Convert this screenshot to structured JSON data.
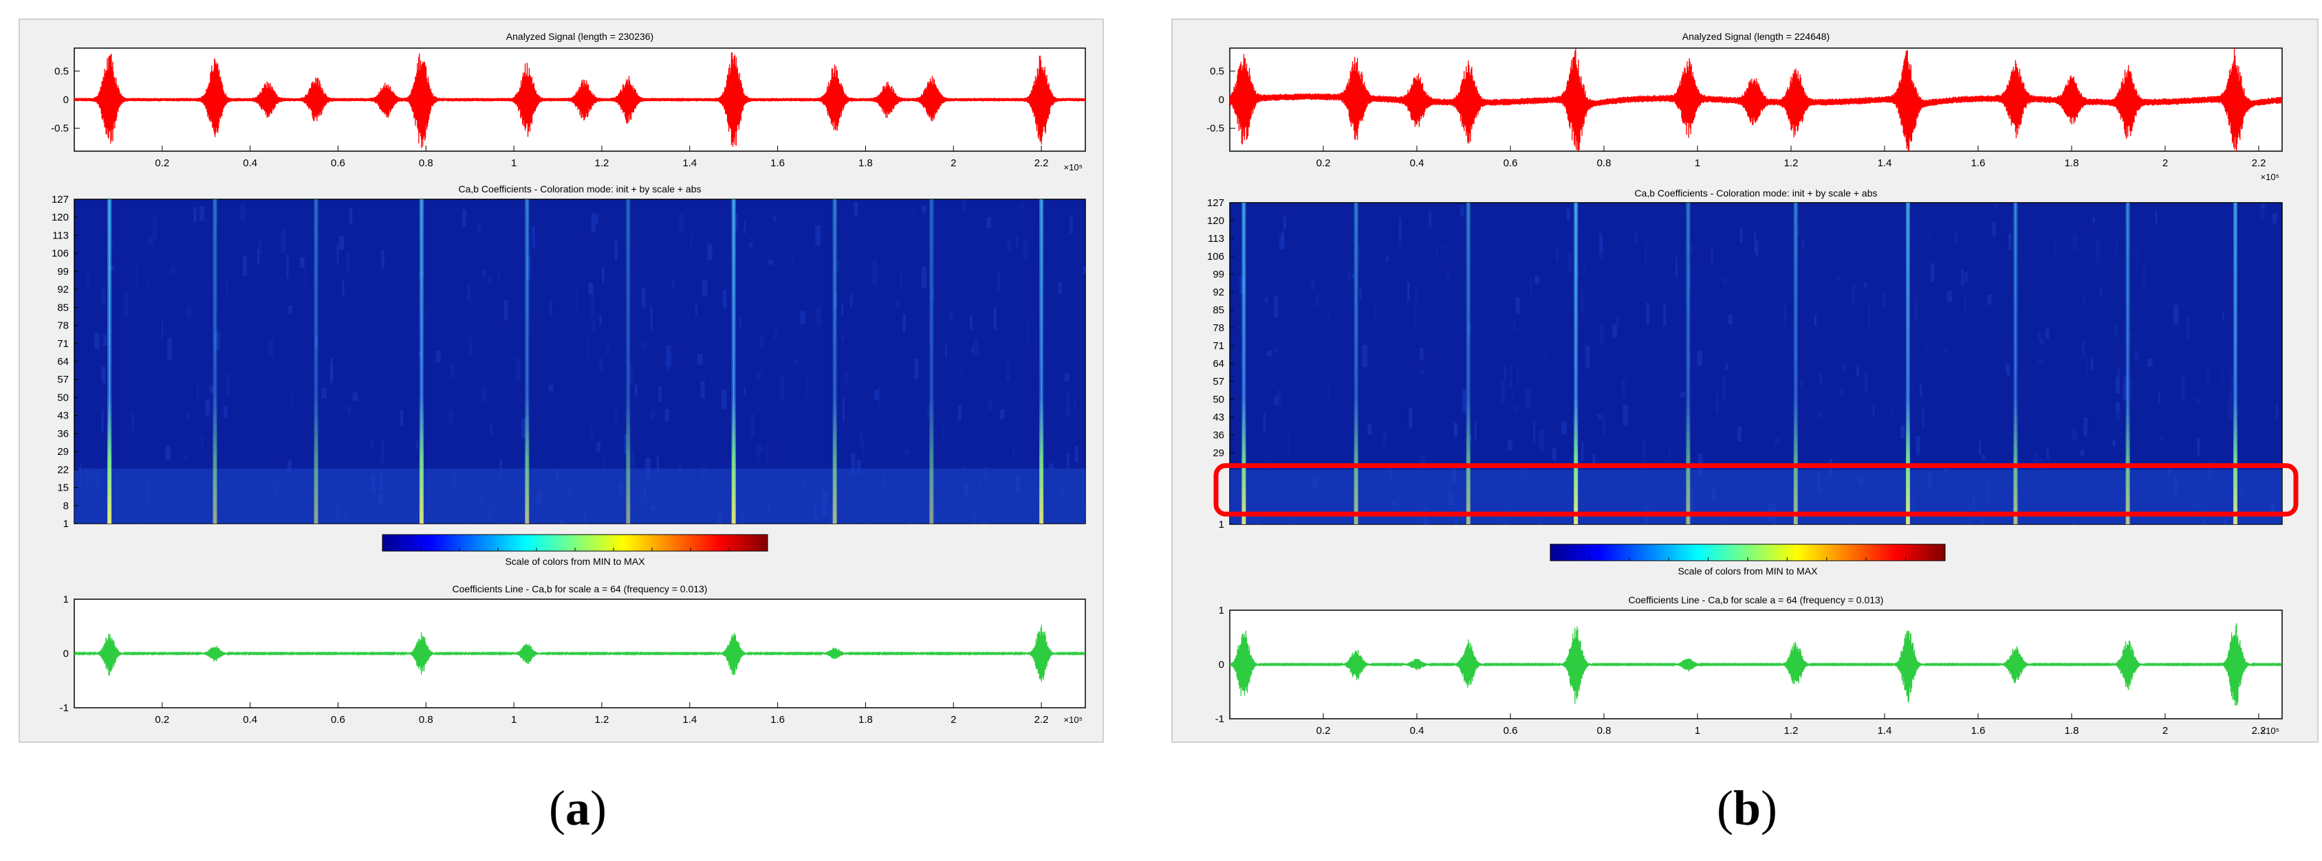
{
  "figure": {
    "panels": [
      {
        "label": "a",
        "signal_title": "Analyzed Signal (length = 230236)",
        "scalogram_title": "Ca,b Coefficients - Coloration mode: init + by scale + abs",
        "colorbar_label": "Scale of colors from MIN to MAX",
        "coeff_title": "Coefficients Line - Ca,b for scale a = 64  (frequency =   0.013)",
        "x_exponent": "×10⁵"
      },
      {
        "label": "b",
        "signal_title": "Analyzed Signal (length = 224648)",
        "scalogram_title": "Ca,b Coefficients - Coloration mode: init + by scale + abs",
        "colorbar_label": "Scale of colors from MIN to MAX",
        "coeff_title": "Coefficients Line - Ca,b for scale a = 64  (frequency =   0.013)",
        "x_exponent": "×10⁵"
      }
    ]
  },
  "chart_data": [
    {
      "panel": "a",
      "type": "line",
      "title": "Analyzed Signal (length = 230236)",
      "x_ticks": [
        "0.2",
        "0.4",
        "0.6",
        "0.8",
        "1",
        "1.2",
        "1.4",
        "1.6",
        "1.8",
        "2",
        "2.2"
      ],
      "y_ticks": [
        "0.5",
        "0",
        "-0.5"
      ],
      "xlim": [
        0,
        2.3
      ],
      "ylim": [
        -0.9,
        0.9
      ],
      "series_color": "#ff0000",
      "spikes": [
        {
          "x": 0.08,
          "amp": 0.85
        },
        {
          "x": 0.32,
          "amp": 0.7
        },
        {
          "x": 0.44,
          "amp": 0.3
        },
        {
          "x": 0.55,
          "amp": 0.4
        },
        {
          "x": 0.71,
          "amp": 0.3
        },
        {
          "x": 0.79,
          "amp": 0.85
        },
        {
          "x": 1.03,
          "amp": 0.65
        },
        {
          "x": 1.16,
          "amp": 0.35
        },
        {
          "x": 1.26,
          "amp": 0.4
        },
        {
          "x": 1.5,
          "amp": 0.88
        },
        {
          "x": 1.73,
          "amp": 0.6
        },
        {
          "x": 1.85,
          "amp": 0.3
        },
        {
          "x": 1.95,
          "amp": 0.4
        },
        {
          "x": 2.2,
          "amp": 0.8
        }
      ]
    },
    {
      "panel": "a",
      "type": "heatmap",
      "title": "Ca,b Coefficients - Coloration mode: init + by scale + abs",
      "y_ticks": [
        "127",
        "120",
        "113",
        "106",
        "99",
        "92",
        "85",
        "78",
        "71",
        "64",
        "57",
        "50",
        "43",
        "36",
        "29",
        "22",
        "15",
        "8",
        "1"
      ],
      "ylim": [
        1,
        127
      ],
      "xlim": [
        0,
        2.3
      ],
      "colorbar_label": "Scale of colors from MIN to MAX",
      "ridges": [
        {
          "x": 0.08,
          "strength": 0.95
        },
        {
          "x": 0.32,
          "strength": 0.4
        },
        {
          "x": 0.55,
          "strength": 0.35
        },
        {
          "x": 0.79,
          "strength": 0.85
        },
        {
          "x": 1.03,
          "strength": 0.55
        },
        {
          "x": 1.26,
          "strength": 0.3
        },
        {
          "x": 1.5,
          "strength": 0.9
        },
        {
          "x": 1.73,
          "strength": 0.5
        },
        {
          "x": 1.95,
          "strength": 0.3
        },
        {
          "x": 2.2,
          "strength": 0.85
        }
      ]
    },
    {
      "panel": "a",
      "type": "line",
      "title": "Coefficients Line - Ca,b for scale a = 64  (frequency =   0.013)",
      "x_ticks": [
        "0.2",
        "0.4",
        "0.6",
        "0.8",
        "1",
        "1.2",
        "1.4",
        "1.6",
        "1.8",
        "2",
        "2.2"
      ],
      "y_ticks": [
        "1",
        "0",
        "-1"
      ],
      "xlim": [
        0,
        2.3
      ],
      "ylim": [
        -1,
        1
      ],
      "series_color": "#2ecc40",
      "spikes": [
        {
          "x": 0.08,
          "amp": 0.4
        },
        {
          "x": 0.32,
          "amp": 0.15
        },
        {
          "x": 0.79,
          "amp": 0.38
        },
        {
          "x": 1.03,
          "amp": 0.2
        },
        {
          "x": 1.5,
          "amp": 0.4
        },
        {
          "x": 1.73,
          "amp": 0.1
        },
        {
          "x": 2.2,
          "amp": 0.55
        }
      ]
    },
    {
      "panel": "b",
      "type": "line",
      "title": "Analyzed Signal (length = 224648)",
      "x_ticks": [
        "0.2",
        "0.4",
        "0.6",
        "0.8",
        "1",
        "1.2",
        "1.4",
        "1.6",
        "1.8",
        "2",
        "2.2"
      ],
      "y_ticks": [
        "0.5",
        "0",
        "-0.5"
      ],
      "xlim": [
        0,
        2.25
      ],
      "ylim": [
        -0.9,
        0.9
      ],
      "series_color": "#ff0000",
      "spikes": [
        {
          "x": 0.03,
          "amp": 0.8
        },
        {
          "x": 0.27,
          "amp": 0.7
        },
        {
          "x": 0.4,
          "amp": 0.45
        },
        {
          "x": 0.51,
          "amp": 0.7
        },
        {
          "x": 0.74,
          "amp": 0.85
        },
        {
          "x": 0.98,
          "amp": 0.65
        },
        {
          "x": 1.12,
          "amp": 0.4
        },
        {
          "x": 1.21,
          "amp": 0.6
        },
        {
          "x": 1.45,
          "amp": 0.85
        },
        {
          "x": 1.68,
          "amp": 0.65
        },
        {
          "x": 1.8,
          "amp": 0.4
        },
        {
          "x": 1.92,
          "amp": 0.6
        },
        {
          "x": 2.15,
          "amp": 0.85
        }
      ]
    },
    {
      "panel": "b",
      "type": "heatmap",
      "title": "Ca,b Coefficients - Coloration mode: init + by scale + abs",
      "y_ticks": [
        "127",
        "120",
        "113",
        "106",
        "99",
        "92",
        "85",
        "78",
        "71",
        "64",
        "57",
        "50",
        "43",
        "36",
        "29",
        "1"
      ],
      "ylim": [
        1,
        127
      ],
      "xlim": [
        0,
        2.25
      ],
      "colorbar_label": "Scale of colors from MIN to MAX",
      "highlight_scale_range": [
        5,
        24
      ],
      "ridges": [
        {
          "x": 0.03,
          "strength": 0.85
        },
        {
          "x": 0.27,
          "strength": 0.5
        },
        {
          "x": 0.51,
          "strength": 0.5
        },
        {
          "x": 0.74,
          "strength": 0.95
        },
        {
          "x": 0.98,
          "strength": 0.45
        },
        {
          "x": 1.21,
          "strength": 0.5
        },
        {
          "x": 1.45,
          "strength": 0.9
        },
        {
          "x": 1.68,
          "strength": 0.55
        },
        {
          "x": 1.92,
          "strength": 0.6
        },
        {
          "x": 2.15,
          "strength": 0.85
        }
      ]
    },
    {
      "panel": "b",
      "type": "line",
      "title": "Coefficients Line - Ca,b for scale a = 64  (frequency =   0.013)",
      "x_ticks": [
        "0.2",
        "0.4",
        "0.6",
        "0.8",
        "1",
        "1.2",
        "1.4",
        "1.6",
        "1.8",
        "2",
        "2.2"
      ],
      "y_ticks": [
        "1",
        "0",
        "-1"
      ],
      "xlim": [
        0,
        2.25
      ],
      "ylim": [
        -1,
        1
      ],
      "series_color": "#2ecc40",
      "spikes": [
        {
          "x": 0.03,
          "amp": 0.7
        },
        {
          "x": 0.27,
          "amp": 0.3
        },
        {
          "x": 0.4,
          "amp": 0.1
        },
        {
          "x": 0.51,
          "amp": 0.45
        },
        {
          "x": 0.74,
          "amp": 0.75
        },
        {
          "x": 0.98,
          "amp": 0.12
        },
        {
          "x": 1.21,
          "amp": 0.45
        },
        {
          "x": 1.45,
          "amp": 0.7
        },
        {
          "x": 1.68,
          "amp": 0.35
        },
        {
          "x": 1.92,
          "amp": 0.5
        },
        {
          "x": 2.15,
          "amp": 0.8
        }
      ]
    }
  ]
}
